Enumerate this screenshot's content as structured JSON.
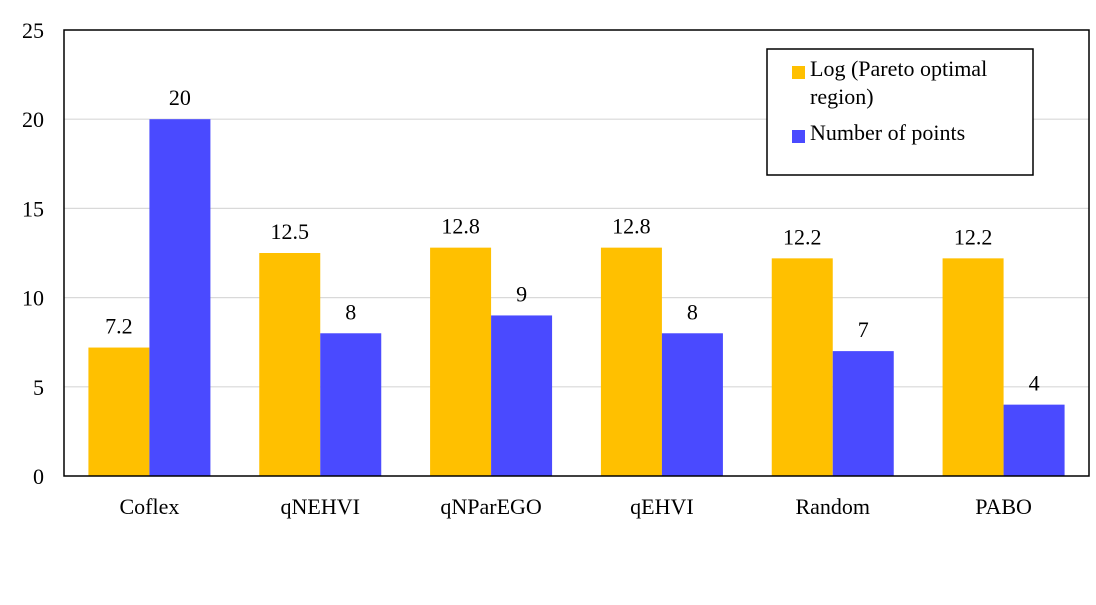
{
  "chart_data": {
    "type": "bar",
    "title": "",
    "xlabel": "",
    "ylabel": "",
    "ylim": [
      0,
      25
    ],
    "yticks": [
      0,
      5,
      10,
      15,
      20,
      25
    ],
    "grid": true,
    "legend_position": "top-right",
    "categories": [
      "Coflex",
      "qNEHVI",
      "qNParEGO",
      "qEHVI",
      "Random",
      "PABO"
    ],
    "series": [
      {
        "name": "Log (Pareto optimal region)",
        "legend_lines": [
          "Log (Pareto optimal",
          "region)"
        ],
        "color": "#ffc000",
        "values": [
          7.2,
          12.5,
          12.8,
          12.8,
          12.2,
          12.2
        ],
        "labels": [
          "7.2",
          "12.5",
          "12.8",
          "12.8",
          "12.2",
          "12.2"
        ]
      },
      {
        "name": "Number of points",
        "legend_lines": [
          "Number of points"
        ],
        "color": "#4a4aff",
        "values": [
          20,
          8,
          9,
          8,
          7,
          4
        ],
        "labels": [
          "20",
          "8",
          "9",
          "8",
          "7",
          "4"
        ]
      }
    ]
  }
}
